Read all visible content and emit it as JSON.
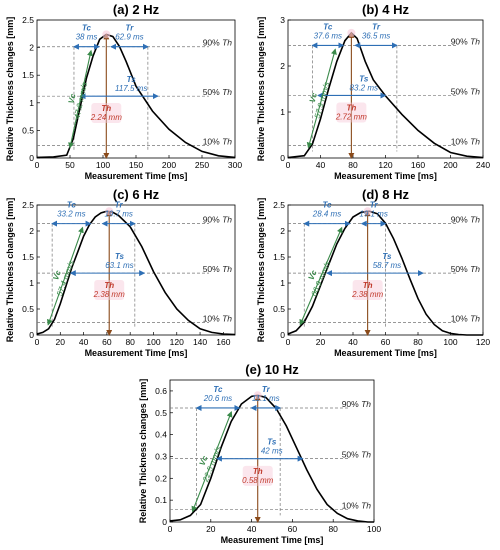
{
  "chart_data": [
    {
      "type": "line",
      "title": "(a) 2 Hz",
      "xlabel": "Measurement Time [ms]",
      "ylabel": "Relative Thickness changes [mm]",
      "xlim": [
        0,
        300
      ],
      "ylim": [
        0,
        2.5
      ],
      "xticks": [
        0,
        50,
        100,
        150,
        200,
        250,
        300
      ],
      "yticks": [
        0,
        0.5,
        1,
        1.5,
        2,
        2.5
      ],
      "x": [
        0,
        25,
        45,
        55,
        65,
        75,
        85,
        95,
        105,
        115,
        125,
        135,
        150,
        175,
        200,
        225,
        250,
        275,
        300
      ],
      "y": [
        0.01,
        0.02,
        0.05,
        0.35,
        0.9,
        1.45,
        1.85,
        2.15,
        2.24,
        2.2,
        2.02,
        1.75,
        1.3,
        0.85,
        0.52,
        0.28,
        0.12,
        0.04,
        0.01
      ],
      "peak": [
        105,
        2.24
      ],
      "levels": [
        0.224,
        1.12,
        2.016
      ],
      "marks": {
        "rise_start": 56,
        "rise_end": 94,
        "fall_end": 168,
        "ts_start": 66,
        "ts_end": 183
      },
      "annotations": {
        "tc": "Tc",
        "tc_val": "38 ms",
        "tr": "Tr",
        "tr_val": "62.9 ms",
        "ts": "Ts",
        "ts_val": "117.5 ms",
        "vc": "Vc",
        "vc_val": "47.2 mm/s",
        "th": "Th",
        "th_val": "2.24 mm",
        "l90": "90%",
        "l50": "50%",
        "l10": "10%"
      }
    },
    {
      "type": "line",
      "title": "(b) 4 Hz",
      "xlabel": "Measurement Time [ms]",
      "ylabel": "Relative Thickness changes [mm]",
      "xlim": [
        0,
        240
      ],
      "ylim": [
        0,
        3
      ],
      "xticks": [
        0,
        40,
        80,
        120,
        160,
        200,
        240
      ],
      "yticks": [
        0,
        1,
        2,
        3
      ],
      "x": [
        0,
        20,
        30,
        40,
        50,
        60,
        70,
        78,
        85,
        95,
        105,
        120,
        140,
        160,
        180,
        200,
        220,
        240
      ],
      "y": [
        0.01,
        0.05,
        0.3,
        0.85,
        1.5,
        2.1,
        2.55,
        2.72,
        2.6,
        2.1,
        1.7,
        1.35,
        0.95,
        0.6,
        0.32,
        0.12,
        0.04,
        0.01
      ],
      "peak": [
        78,
        2.72
      ],
      "levels": [
        0.272,
        1.36,
        2.448
      ],
      "marks": {
        "rise_start": 30,
        "rise_end": 68,
        "fall_end": 134,
        "ts_start": 37,
        "ts_end": 120
      },
      "annotations": {
        "tc": "Tc",
        "tc_val": "37.6 ms",
        "tr": "Tr",
        "tr_val": "36.5 ms",
        "ts": "Ts",
        "ts_val": "83.2 ms",
        "vc": "Vc",
        "vc_val": "57.9 mm/s",
        "th": "Th",
        "th_val": "2.72 mm",
        "l90": "90%",
        "l50": "50%",
        "l10": "10%"
      }
    },
    {
      "type": "line",
      "title": "(c) 6 Hz",
      "xlabel": "Measurement Time [ms]",
      "ylabel": "Relative Thickness changes [mm]",
      "xlim": [
        0,
        170
      ],
      "ylim": [
        0,
        2.5
      ],
      "xticks": [
        0,
        20,
        40,
        60,
        80,
        100,
        120,
        140,
        160
      ],
      "yticks": [
        0,
        0.5,
        1,
        1.5,
        2,
        2.5
      ],
      "x": [
        0,
        5,
        10,
        15,
        20,
        25,
        30,
        35,
        40,
        45,
        50,
        55,
        60,
        65,
        70,
        80,
        90,
        100,
        110,
        120,
        130,
        140,
        150,
        160,
        170
      ],
      "y": [
        0.02,
        0.05,
        0.12,
        0.3,
        0.6,
        0.95,
        1.3,
        1.6,
        1.9,
        2.12,
        2.27,
        2.35,
        2.38,
        2.36,
        2.3,
        2.08,
        1.7,
        1.22,
        0.82,
        0.5,
        0.28,
        0.12,
        0.05,
        0.02,
        0.01
      ],
      "peak": [
        62,
        2.38
      ],
      "levels": [
        0.238,
        1.19,
        2.142
      ],
      "marks": {
        "rise_start": 13,
        "rise_end": 46,
        "fall_end": 84,
        "ts_start": 29,
        "ts_end": 92
      },
      "annotations": {
        "tc": "Tc",
        "tc_val": "33.2 ms",
        "tr": "Tr",
        "tr_val": "19.7 ms",
        "ts": "Ts",
        "ts_val": "63.1 ms",
        "vc": "Vc",
        "vc_val": "57.4 mm/s",
        "th": "Th",
        "th_val": "2.38 mm",
        "l90": "90%",
        "l50": "50%",
        "l10": "10%"
      }
    },
    {
      "type": "line",
      "title": "(d) 8 Hz",
      "xlabel": "Measurement Time [ms]",
      "ylabel": "Relative Thickness changes [mm]",
      "xlim": [
        0,
        120
      ],
      "ylim": [
        0,
        2.5
      ],
      "xticks": [
        0,
        20,
        40,
        60,
        80,
        100,
        120
      ],
      "yticks": [
        0,
        0.5,
        1,
        1.5,
        2,
        2.5
      ],
      "x": [
        0,
        5,
        10,
        15,
        20,
        25,
        30,
        35,
        40,
        45,
        50,
        55,
        60,
        65,
        70,
        75,
        80,
        85,
        90,
        95,
        100,
        105,
        110,
        115,
        120
      ],
      "y": [
        0.02,
        0.08,
        0.25,
        0.55,
        0.95,
        1.35,
        1.75,
        2.05,
        2.27,
        2.36,
        2.38,
        2.33,
        2.15,
        1.85,
        1.48,
        1.08,
        0.7,
        0.4,
        0.2,
        0.08,
        0.03,
        0.01,
        0.0,
        0.0,
        0.0
      ],
      "peak": [
        49,
        2.38
      ],
      "levels": [
        0.238,
        1.19,
        2.142
      ],
      "marks": {
        "rise_start": 10,
        "rise_end": 38,
        "fall_end": 60,
        "ts_start": 24,
        "ts_end": 83
      },
      "annotations": {
        "tc": "Tc",
        "tc_val": "28.4 ms",
        "tr": "Tr",
        "tr_val": "19.1 ms",
        "ts": "Ts",
        "ts_val": "58.7 ms",
        "vc": "Vc",
        "vc_val": "66.9 mm/s",
        "th": "Th",
        "th_val": "2.38 mm",
        "l90": "90%",
        "l50": "50%",
        "l10": "10%"
      }
    },
    {
      "type": "line",
      "title": "(e) 10 Hz",
      "xlabel": "Measurement Time [ms]",
      "ylabel": "Relative Thickness changes [mm]",
      "xlim": [
        0,
        100
      ],
      "ylim": [
        0,
        0.65
      ],
      "xticks": [
        0,
        20,
        40,
        60,
        80,
        100
      ],
      "yticks": [
        0,
        0.1,
        0.2,
        0.3,
        0.4,
        0.5,
        0.6
      ],
      "x": [
        0,
        5,
        10,
        15,
        20,
        25,
        30,
        35,
        40,
        43,
        47,
        52,
        57,
        62,
        67,
        72,
        77,
        82,
        87,
        92,
        97,
        100
      ],
      "y": [
        0.005,
        0.01,
        0.03,
        0.08,
        0.2,
        0.34,
        0.46,
        0.54,
        0.575,
        0.58,
        0.57,
        0.52,
        0.44,
        0.34,
        0.24,
        0.15,
        0.08,
        0.04,
        0.015,
        0.005,
        0.0,
        0.0
      ],
      "peak": [
        43,
        0.58
      ],
      "levels": [
        0.058,
        0.29,
        0.522
      ],
      "marks": {
        "rise_start": 13,
        "rise_end": 34,
        "fall_end": 54,
        "ts_start": 23,
        "ts_end": 65
      },
      "annotations": {
        "tc": "Tc",
        "tc_val": "20.6 ms",
        "tr": "Tr",
        "tr_val": "11.1 ms",
        "ts": "Ts",
        "ts_val": "42 ms",
        "vc": "Vc",
        "vc_val": "22.5 mm/s",
        "th": "Th",
        "th_val": "0.58 mm",
        "l90": "90%",
        "l50": "50%",
        "l10": "10%"
      }
    }
  ],
  "colors": {
    "curve": "#000000",
    "guide": "#777777",
    "tc": "#2e6fb5",
    "ts": "#2e6fb5",
    "tr": "#2e6fb5",
    "vc": "#3a8a4a",
    "th": "#8a4a1a",
    "th_text": "#c0392b",
    "highlight": "#f7c8d8"
  }
}
